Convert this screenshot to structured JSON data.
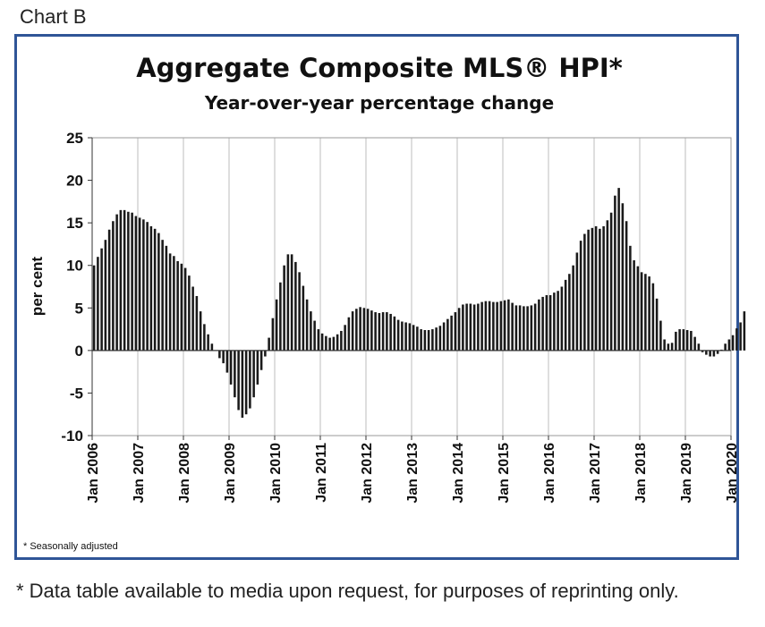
{
  "label": "Chart B",
  "footnote": "* Data table available to media upon request, for purposes of reprinting only.",
  "chart_note": "* Seasonally adjusted",
  "colors": {
    "frame": "#2f5597",
    "bar": "#1a1a1a",
    "axis": "#444444"
  },
  "chart_data": {
    "type": "bar",
    "title": "Aggregate Composite MLS® HPI*",
    "subtitle": "Year-over-year percentage change",
    "ylabel": "per cent",
    "xlabel": "",
    "ylim": [
      -10,
      25
    ],
    "yticks": [
      25,
      20,
      15,
      10,
      5,
      0,
      -5,
      -10
    ],
    "xtick_labels": [
      "Jan 2006",
      "Jan 2007",
      "Jan 2008",
      "Jan 2009",
      "Jan 2010",
      "Jan 2011",
      "Jan 2012",
      "Jan 2013",
      "Jan 2014",
      "Jan 2015",
      "Jan 2016",
      "Jan 2017",
      "Jan 2018",
      "Jan 2019",
      "Jan 2020"
    ],
    "x_start": "Jan 2006",
    "x_end": "Jan 2020",
    "frequency": "monthly",
    "grid": "vertical",
    "values": [
      10,
      11,
      12,
      13,
      14.2,
      15.2,
      16,
      16.5,
      16.5,
      16.3,
      16.2,
      15.8,
      15.6,
      15.4,
      15.1,
      14.6,
      14.3,
      13.8,
      13,
      12.3,
      11.4,
      11.1,
      10.5,
      10.2,
      9.7,
      8.8,
      7.5,
      6.4,
      4.6,
      3.1,
      1.9,
      0.8,
      0,
      -0.9,
      -1.5,
      -2.6,
      -4,
      -5.5,
      -7,
      -7.9,
      -7.5,
      -6.8,
      -5.5,
      -4,
      -2.3,
      -0.7,
      1.5,
      3.8,
      6,
      8,
      10,
      11.3,
      11.3,
      10.4,
      9.2,
      7.6,
      6,
      4.6,
      3.5,
      2.5,
      2,
      1.7,
      1.5,
      1.6,
      1.9,
      2.3,
      3,
      3.9,
      4.6,
      4.9,
      5.1,
      5,
      4.9,
      4.7,
      4.5,
      4.4,
      4.5,
      4.5,
      4.3,
      4,
      3.6,
      3.4,
      3.3,
      3.2,
      3,
      2.8,
      2.5,
      2.4,
      2.4,
      2.5,
      2.7,
      2.9,
      3.3,
      3.7,
      4.1,
      4.5,
      5,
      5.4,
      5.5,
      5.5,
      5.4,
      5.5,
      5.7,
      5.8,
      5.8,
      5.7,
      5.7,
      5.8,
      5.9,
      6,
      5.6,
      5.3,
      5.3,
      5.2,
      5.2,
      5.3,
      5.5,
      6,
      6.3,
      6.5,
      6.5,
      6.8,
      7,
      7.5,
      8.3,
      9,
      10,
      11.5,
      12.9,
      13.7,
      14.2,
      14.4,
      14.6,
      14.3,
      14.6,
      15.3,
      16.2,
      18.2,
      19.1,
      17.3,
      15.2,
      12.3,
      10.6,
      9.9,
      9.2,
      9,
      8.7,
      7.9,
      6.1,
      3.5,
      1.3,
      0.8,
      0.9,
      2.2,
      2.5,
      2.5,
      2.4,
      2.3,
      1.6,
      0.8,
      -0.2,
      -0.5,
      -0.7,
      -0.7,
      -0.4,
      0.1,
      0.8,
      1.3,
      1.8,
      2.6,
      3.3,
      4.6
    ]
  }
}
